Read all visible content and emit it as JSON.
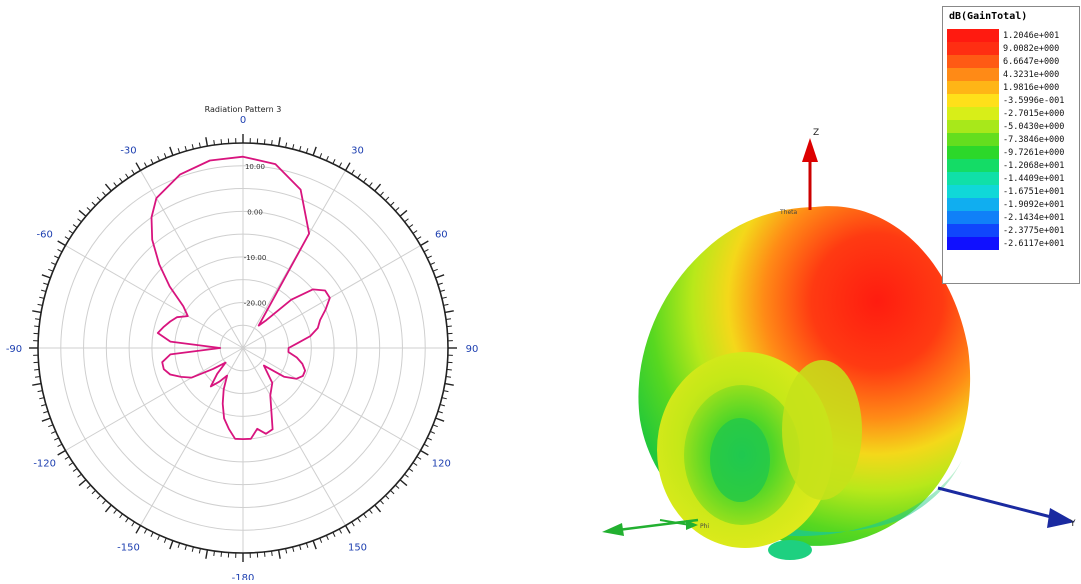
{
  "polar": {
    "title": "Radiation Pattern 3",
    "angle_labels": [
      {
        "label": "0",
        "deg": 0
      },
      {
        "label": "30",
        "deg": 30
      },
      {
        "label": "60",
        "deg": 60
      },
      {
        "label": "90",
        "deg": 90
      },
      {
        "label": "120",
        "deg": 120
      },
      {
        "label": "150",
        "deg": 150
      },
      {
        "label": "-180",
        "deg": 180
      },
      {
        "label": "-150",
        "deg": 210
      },
      {
        "label": "-120",
        "deg": 240
      },
      {
        "label": "-90",
        "deg": 270
      },
      {
        "label": "-60",
        "deg": 300
      },
      {
        "label": "-30",
        "deg": 330
      }
    ],
    "radial_labels": [
      {
        "label": "10.00",
        "value": 10
      },
      {
        "label": "0.00",
        "value": 0
      },
      {
        "label": "-10.00",
        "value": -10
      },
      {
        "label": "-20.00",
        "value": -20
      }
    ],
    "trace_color": "#d8147e"
  },
  "chart_data": {
    "type": "polar-line",
    "title": "Radiation Pattern 3",
    "angle_unit": "deg",
    "r_range": [
      -30,
      15
    ],
    "r_ticks": [
      10,
      0,
      -10,
      -20
    ],
    "series": [
      {
        "theta": [
          0,
          10,
          20,
          30,
          35,
          40,
          45,
          50,
          55,
          60,
          65,
          70,
          75,
          80,
          85,
          90,
          95,
          100,
          105,
          110,
          115,
          120,
          125,
          130,
          140,
          150,
          160,
          165,
          170,
          175,
          180,
          185,
          190,
          195,
          200,
          205,
          210,
          215,
          220,
          225,
          230,
          235,
          240,
          245,
          250,
          255,
          260,
          265,
          270,
          275,
          280,
          285,
          290,
          295,
          300,
          305,
          310,
          315,
          320,
          325,
          330,
          340,
          350
        ],
        "r": [
          12.0,
          11.0,
          7.0,
          -1.0,
          -24.0,
          -22.0,
          -15.0,
          -10.0,
          -8.0,
          -8.0,
          -10.0,
          -12.0,
          -13.0,
          -15.0,
          -18.0,
          -20.0,
          -20.0,
          -18.0,
          -16.5,
          -15.5,
          -15.5,
          -16.5,
          -19.0,
          -24.0,
          -20.0,
          -18.0,
          -11.0,
          -10.5,
          -12.0,
          -10.0,
          -10.0,
          -10.0,
          -12.0,
          -14.0,
          -17.0,
          -20.0,
          -23.0,
          -21.0,
          -19.0,
          -22.0,
          -25.0,
          -22.0,
          -17.0,
          -15.0,
          -13.0,
          -12.0,
          -12.0,
          -14.0,
          -25.0,
          -14.0,
          -11.0,
          -12.0,
          -13.0,
          -14.0,
          -16.0,
          -14.0,
          -9.0,
          -4.0,
          1.0,
          5.0,
          8.0,
          10.5,
          11.8
        ]
      }
    ]
  },
  "pattern3d": {
    "axis_z": "Z",
    "axis_y": "Y",
    "label_phi": "Phi",
    "label_theta": "Theta"
  },
  "legend": {
    "title": "dB(GainTotal)",
    "entries": [
      {
        "value": "1.2046e+001",
        "color": "#ff1a10"
      },
      {
        "value": "9.0082e+000",
        "color": "#ff2e12"
      },
      {
        "value": "6.6647e+000",
        "color": "#ff5a14"
      },
      {
        "value": "4.3231e+000",
        "color": "#ff8a16"
      },
      {
        "value": "1.9816e+000",
        "color": "#ffb516"
      },
      {
        "value": "-3.5996e-001",
        "color": "#ffe01a"
      },
      {
        "value": "-2.7015e+000",
        "color": "#d8ee18"
      },
      {
        "value": "-5.0430e+000",
        "color": "#a8e81a"
      },
      {
        "value": "-7.3846e+000",
        "color": "#64de1e"
      },
      {
        "value": "-9.7261e+000",
        "color": "#2cd82a"
      },
      {
        "value": "-1.2068e+001",
        "color": "#14dc66"
      },
      {
        "value": "-1.4409e+001",
        "color": "#10e0a8"
      },
      {
        "value": "-1.6751e+001",
        "color": "#10d8d8"
      },
      {
        "value": "-1.9092e+001",
        "color": "#10aef0"
      },
      {
        "value": "-2.1434e+001",
        "color": "#1080f8"
      },
      {
        "value": "-2.3775e+001",
        "color": "#1046fc"
      },
      {
        "value": "-2.6117e+001",
        "color": "#1010ff"
      }
    ]
  }
}
